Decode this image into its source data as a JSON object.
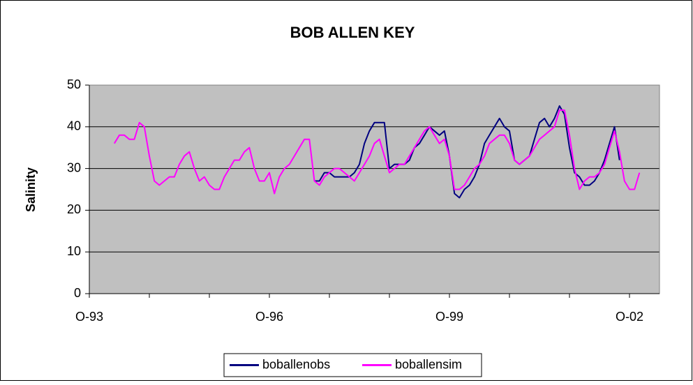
{
  "chart_data": {
    "type": "line",
    "title": "BOB ALLEN KEY",
    "y_label": "Salinity",
    "x": [
      "1994-03",
      "1994-04",
      "1994-05",
      "1994-06",
      "1994-07",
      "1994-08",
      "1994-09",
      "1994-10",
      "1994-11",
      "1994-12",
      "1995-01",
      "1995-02",
      "1995-03",
      "1995-04",
      "1995-05",
      "1995-06",
      "1995-07",
      "1995-08",
      "1995-09",
      "1995-10",
      "1995-11",
      "1995-12",
      "1996-01",
      "1996-02",
      "1996-03",
      "1996-04",
      "1996-05",
      "1996-06",
      "1996-07",
      "1996-08",
      "1996-09",
      "1996-10",
      "1996-11",
      "1996-12",
      "1997-01",
      "1997-02",
      "1997-03",
      "1997-04",
      "1997-05",
      "1997-06",
      "1997-07",
      "1997-08",
      "1997-09",
      "1997-10",
      "1997-11",
      "1997-12",
      "1998-01",
      "1998-02",
      "1998-03",
      "1998-04",
      "1998-05",
      "1998-06",
      "1998-07",
      "1998-08",
      "1998-09",
      "1998-10",
      "1998-11",
      "1998-12",
      "1999-01",
      "1999-02",
      "1999-03",
      "1999-04",
      "1999-05",
      "1999-06",
      "1999-07",
      "1999-08",
      "1999-09",
      "1999-10",
      "1999-11",
      "1999-12",
      "2000-01",
      "2000-02",
      "2000-03",
      "2000-04",
      "2000-05",
      "2000-06",
      "2000-07",
      "2000-08",
      "2000-09",
      "2000-10",
      "2000-11",
      "2000-12",
      "2001-01",
      "2001-02",
      "2001-03",
      "2001-04",
      "2001-05",
      "2001-06",
      "2001-07",
      "2001-08",
      "2001-09",
      "2001-10",
      "2001-11",
      "2001-12",
      "2002-01",
      "2002-02",
      "2002-03",
      "2002-04",
      "2002-05",
      "2002-06",
      "2002-07",
      "2002-08",
      "2002-09",
      "2002-10",
      "2002-11",
      "2002-12"
    ],
    "series": [
      {
        "name": "boballenobs",
        "color": "#000080",
        "values": [
          null,
          null,
          null,
          null,
          null,
          null,
          null,
          null,
          null,
          null,
          null,
          null,
          null,
          null,
          null,
          null,
          null,
          null,
          null,
          null,
          null,
          null,
          null,
          null,
          null,
          null,
          null,
          null,
          null,
          null,
          null,
          null,
          null,
          null,
          null,
          null,
          null,
          null,
          null,
          null,
          27,
          27,
          29,
          29,
          28,
          28,
          28,
          28,
          29,
          31,
          36,
          39,
          41,
          41,
          41,
          30,
          31,
          31,
          31,
          32,
          35,
          36,
          38,
          40,
          39,
          38,
          39,
          33,
          24,
          23,
          25,
          26,
          28,
          31,
          36,
          38,
          40,
          42,
          40,
          39,
          32,
          31,
          32,
          33,
          37,
          41,
          42,
          40,
          42,
          45,
          43,
          35,
          29,
          28,
          26,
          26,
          27,
          29,
          32,
          36,
          40,
          32,
          null,
          null,
          null,
          null
        ]
      },
      {
        "name": "boballensim",
        "color": "#ff00ff",
        "values": [
          36,
          38,
          38,
          37,
          37,
          41,
          40,
          33,
          27,
          26,
          27,
          28,
          28,
          31,
          33,
          34,
          30,
          27,
          28,
          26,
          25,
          25,
          28,
          30,
          32,
          32,
          34,
          35,
          30,
          27,
          27,
          29,
          24,
          28,
          30,
          31,
          33,
          35,
          37,
          37,
          27,
          26,
          28,
          29,
          30,
          30,
          29,
          28,
          27,
          29,
          31,
          33,
          36,
          37,
          33,
          29,
          30,
          31,
          31,
          33,
          35,
          37,
          39,
          40,
          38,
          36,
          37,
          33,
          25,
          25,
          26,
          28,
          30,
          31,
          33,
          36,
          37,
          38,
          38,
          36,
          32,
          31,
          32,
          33,
          35,
          37,
          38,
          39,
          40,
          44,
          44,
          38,
          30,
          25,
          27,
          28,
          28,
          29,
          31,
          35,
          39,
          34,
          27,
          25,
          25,
          29
        ]
      }
    ],
    "xlim": [
      "1993-10",
      "2003-04"
    ],
    "xticks": [
      {
        "value": "1993-10",
        "label": "O-93"
      },
      {
        "value": "1996-10",
        "label": "O-96"
      },
      {
        "value": "1999-10",
        "label": "O-99"
      },
      {
        "value": "2002-10",
        "label": "O-02"
      }
    ],
    "xminorticks": [
      "1994-10",
      "1995-10",
      "1997-10",
      "1998-10",
      "2000-10",
      "2001-10"
    ],
    "ylim": [
      0,
      50
    ],
    "yticks": [
      0,
      10,
      20,
      30,
      40,
      50
    ],
    "grid": true,
    "legend": "bottom",
    "plot_background": "#c0c0c0"
  }
}
